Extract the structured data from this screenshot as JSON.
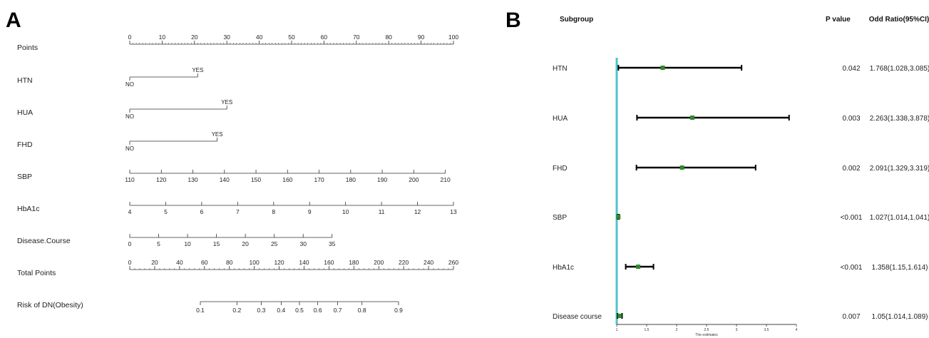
{
  "panels": {
    "a": "A",
    "b": "B"
  },
  "chart_data": [
    {
      "type": "nomogram",
      "panel": "A",
      "scales": [
        {
          "name": "Points",
          "ticks": [
            0,
            10,
            20,
            30,
            40,
            50,
            60,
            70,
            80,
            90,
            100
          ],
          "range": [
            0,
            100
          ],
          "minor_step": 1
        },
        {
          "name": "HTN",
          "categories": [
            {
              "label": "NO",
              "points": 0
            },
            {
              "label": "YES",
              "points": 21
            }
          ]
        },
        {
          "name": "HUA",
          "categories": [
            {
              "label": "NO",
              "points": 0
            },
            {
              "label": "YES",
              "points": 30
            }
          ]
        },
        {
          "name": "FHD",
          "categories": [
            {
              "label": "NO",
              "points": 0
            },
            {
              "label": "YES",
              "points": 27
            }
          ]
        },
        {
          "name": "SBP",
          "ticks": [
            110,
            120,
            130,
            140,
            150,
            160,
            170,
            180,
            190,
            200,
            210
          ],
          "points_range": [
            0,
            97.5
          ]
        },
        {
          "name": "HbA1c",
          "ticks": [
            4,
            5,
            6,
            7,
            8,
            9,
            10,
            11,
            12,
            13
          ],
          "points_range": [
            0,
            100
          ]
        },
        {
          "name": "Disease.Course",
          "ticks": [
            0,
            5,
            10,
            15,
            20,
            25,
            30,
            35
          ],
          "points_range": [
            0,
            62.5
          ]
        },
        {
          "name": "Total Points",
          "ticks": [
            0,
            20,
            40,
            60,
            80,
            100,
            120,
            140,
            160,
            180,
            200,
            220,
            240,
            260
          ],
          "range": [
            0,
            260
          ],
          "minor_step": 4
        },
        {
          "name": "Risk of DN(Obesity)",
          "ticks": [
            {
              "label": "0.1",
              "v": 0.1
            },
            {
              "label": "0.2",
              "v": 0.2
            },
            {
              "label": "0.3",
              "v": 0.3
            },
            {
              "label": "0.4",
              "v": 0.4
            },
            {
              "label": "0.5",
              "v": 0.5
            },
            {
              "label": "0.6",
              "v": 0.6
            },
            {
              "label": "0.7",
              "v": 0.7
            },
            {
              "label": "0.8",
              "v": 0.8
            },
            {
              "label": "0.9",
              "v": 0.9
            }
          ]
        }
      ]
    },
    {
      "type": "forest",
      "panel": "B",
      "headers": {
        "subgroup": "Subgroup",
        "p": "P value",
        "or": "Odd Ratio(95%CI)"
      },
      "x_axis": {
        "label": "The estimates",
        "range": [
          1,
          4
        ],
        "ticks": [
          "1",
          "1.5",
          "2",
          "2.5",
          "3",
          "3.5",
          "4"
        ]
      },
      "reference_line": 1,
      "colors": {
        "reference": "#4fc3c9",
        "point": "#2e8b2e",
        "ci": "#000000"
      },
      "rows": [
        {
          "subgroup": "HTN",
          "estimate": 1.768,
          "lower": 1.028,
          "upper": 3.085,
          "p": "0.042",
          "or_text": "1.768(1.028,3.085)"
        },
        {
          "subgroup": "HUA",
          "estimate": 2.263,
          "lower": 1.338,
          "upper": 3.878,
          "p": "0.003",
          "or_text": "2.263(1.338,3.878)"
        },
        {
          "subgroup": "FHD",
          "estimate": 2.091,
          "lower": 1.329,
          "upper": 3.319,
          "p": "0.002",
          "or_text": "2.091(1.329,3.319)"
        },
        {
          "subgroup": "SBP",
          "estimate": 1.027,
          "lower": 1.014,
          "upper": 1.041,
          "p": "<0.001",
          "or_text": "1.027(1.014,1.041)"
        },
        {
          "subgroup": "HbA1c",
          "estimate": 1.358,
          "lower": 1.15,
          "upper": 1.614,
          "p": "<0.001",
          "or_text": "1.358(1.15,1.614)"
        },
        {
          "subgroup": "Disease course",
          "estimate": 1.05,
          "lower": 1.014,
          "upper": 1.089,
          "p": "0.007",
          "or_text": "1.05(1.014,1.089)"
        }
      ]
    }
  ]
}
